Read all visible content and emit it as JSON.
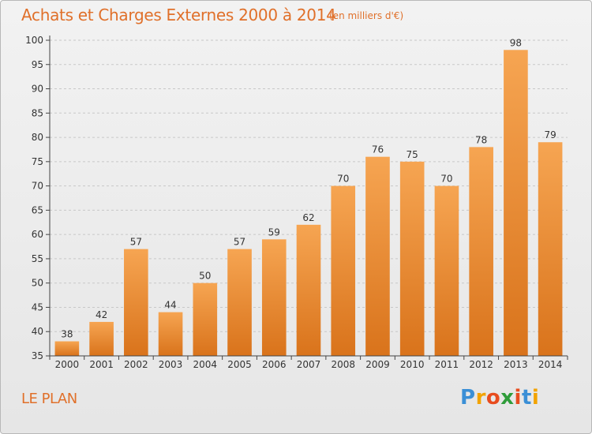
{
  "title": "Achats et Charges Externes 2000 à 2014",
  "units": "(en milliers d'€)",
  "commune": "LE PLAN",
  "logo": {
    "text": "Proxiti",
    "letters": [
      "P",
      "r",
      "o",
      "x",
      "i",
      "t",
      "i"
    ],
    "colors": [
      "#3a8fd6",
      "#f2a300",
      "#e84c1e",
      "#2f9c3a",
      "#e84c1e",
      "#3a8fd6",
      "#f2a300"
    ]
  },
  "colors": {
    "accent": "#e0702a",
    "bar_top": "#f6a552",
    "bar_bottom": "#d9731b",
    "axis": "#444444"
  },
  "chart_data": {
    "type": "bar",
    "categories": [
      "2000",
      "2001",
      "2002",
      "2003",
      "2004",
      "2005",
      "2006",
      "2007",
      "2008",
      "2009",
      "2010",
      "2011",
      "2012",
      "2013",
      "2014"
    ],
    "values": [
      38,
      42,
      57,
      44,
      50,
      57,
      59,
      62,
      70,
      76,
      75,
      70,
      78,
      98,
      79
    ],
    "ylim": [
      35,
      100
    ],
    "yticks": [
      35,
      40,
      45,
      50,
      55,
      60,
      65,
      70,
      75,
      80,
      85,
      90,
      95,
      100
    ],
    "grid": "horizontal dashed",
    "data_labels": true,
    "title": "Achats et Charges Externes 2000 à 2014",
    "xlabel": "",
    "ylabel": ""
  }
}
